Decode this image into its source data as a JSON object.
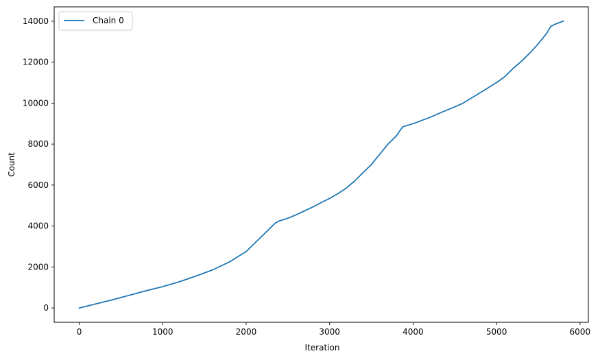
{
  "chart_data": {
    "type": "line",
    "title": "",
    "xlabel": "Iteration",
    "ylabel": "Count",
    "xlim": [
      -300,
      6100
    ],
    "ylim": [
      -700,
      14700
    ],
    "xticks": [
      0,
      1000,
      2000,
      3000,
      4000,
      5000,
      6000
    ],
    "yticks": [
      0,
      2000,
      4000,
      6000,
      8000,
      10000,
      12000,
      14000
    ],
    "grid": false,
    "legend": {
      "position": "top-left",
      "entries": [
        "Chain 0"
      ]
    },
    "series": [
      {
        "name": "Chain 0",
        "color": "#1f77b4",
        "x": [
          0,
          200,
          400,
          600,
          800,
          1000,
          1200,
          1400,
          1600,
          1800,
          2000,
          2100,
          2200,
          2300,
          2350,
          2400,
          2500,
          2600,
          2700,
          2800,
          2900,
          3000,
          3100,
          3200,
          3300,
          3400,
          3500,
          3600,
          3700,
          3800,
          3850,
          3880,
          4000,
          4100,
          4200,
          4300,
          4400,
          4500,
          4600,
          4700,
          4800,
          4900,
          5000,
          5100,
          5200,
          5300,
          5400,
          5500,
          5600,
          5650,
          5700,
          5800
        ],
        "y": [
          0,
          200,
          400,
          620,
          840,
          1040,
          1280,
          1560,
          1860,
          2250,
          2750,
          3150,
          3550,
          3950,
          4150,
          4250,
          4380,
          4550,
          4740,
          4930,
          5150,
          5350,
          5580,
          5850,
          6200,
          6600,
          7000,
          7500,
          8000,
          8400,
          8700,
          8850,
          9000,
          9150,
          9300,
          9480,
          9650,
          9820,
          10000,
          10250,
          10500,
          10750,
          11000,
          11300,
          11700,
          12050,
          12450,
          12900,
          13400,
          13750,
          13850,
          14000
        ]
      }
    ]
  }
}
